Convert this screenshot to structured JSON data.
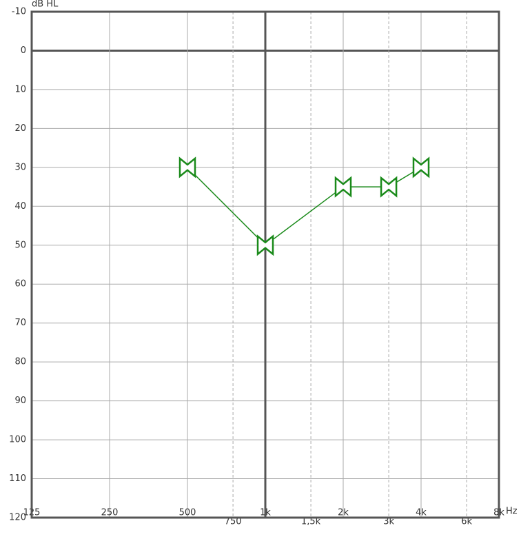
{
  "chart_data": {
    "type": "line",
    "y_label": "dB HL",
    "x_label": "Hz",
    "xscale": "log",
    "yinverted": true,
    "xlim": [
      125,
      8000
    ],
    "ylim": [
      -10,
      120
    ],
    "xticks": [
      125,
      250,
      500,
      {
        "value": 1000,
        "label": "1k"
      },
      {
        "value": 2000,
        "label": "2k"
      },
      {
        "value": 4000,
        "label": "4k"
      },
      {
        "value": 8000,
        "label": "8k"
      }
    ],
    "xticks_minor": [
      750,
      {
        "value": 1500,
        "label": "1,5k"
      },
      {
        "value": 3000,
        "label": "3k"
      },
      {
        "value": 6000,
        "label": "6k"
      }
    ],
    "yticks": [
      -10,
      0,
      10,
      20,
      30,
      40,
      50,
      60,
      70,
      80,
      90,
      100,
      110,
      120
    ],
    "emphasis": {
      "x": 1000,
      "y": 0
    },
    "grid": true,
    "x": [
      500,
      1000,
      2000,
      3000,
      4000
    ],
    "series": [
      {
        "color": "#1a8a1a",
        "marker": "bowtie",
        "values": [
          30,
          50,
          35,
          35,
          30
        ]
      }
    ]
  }
}
